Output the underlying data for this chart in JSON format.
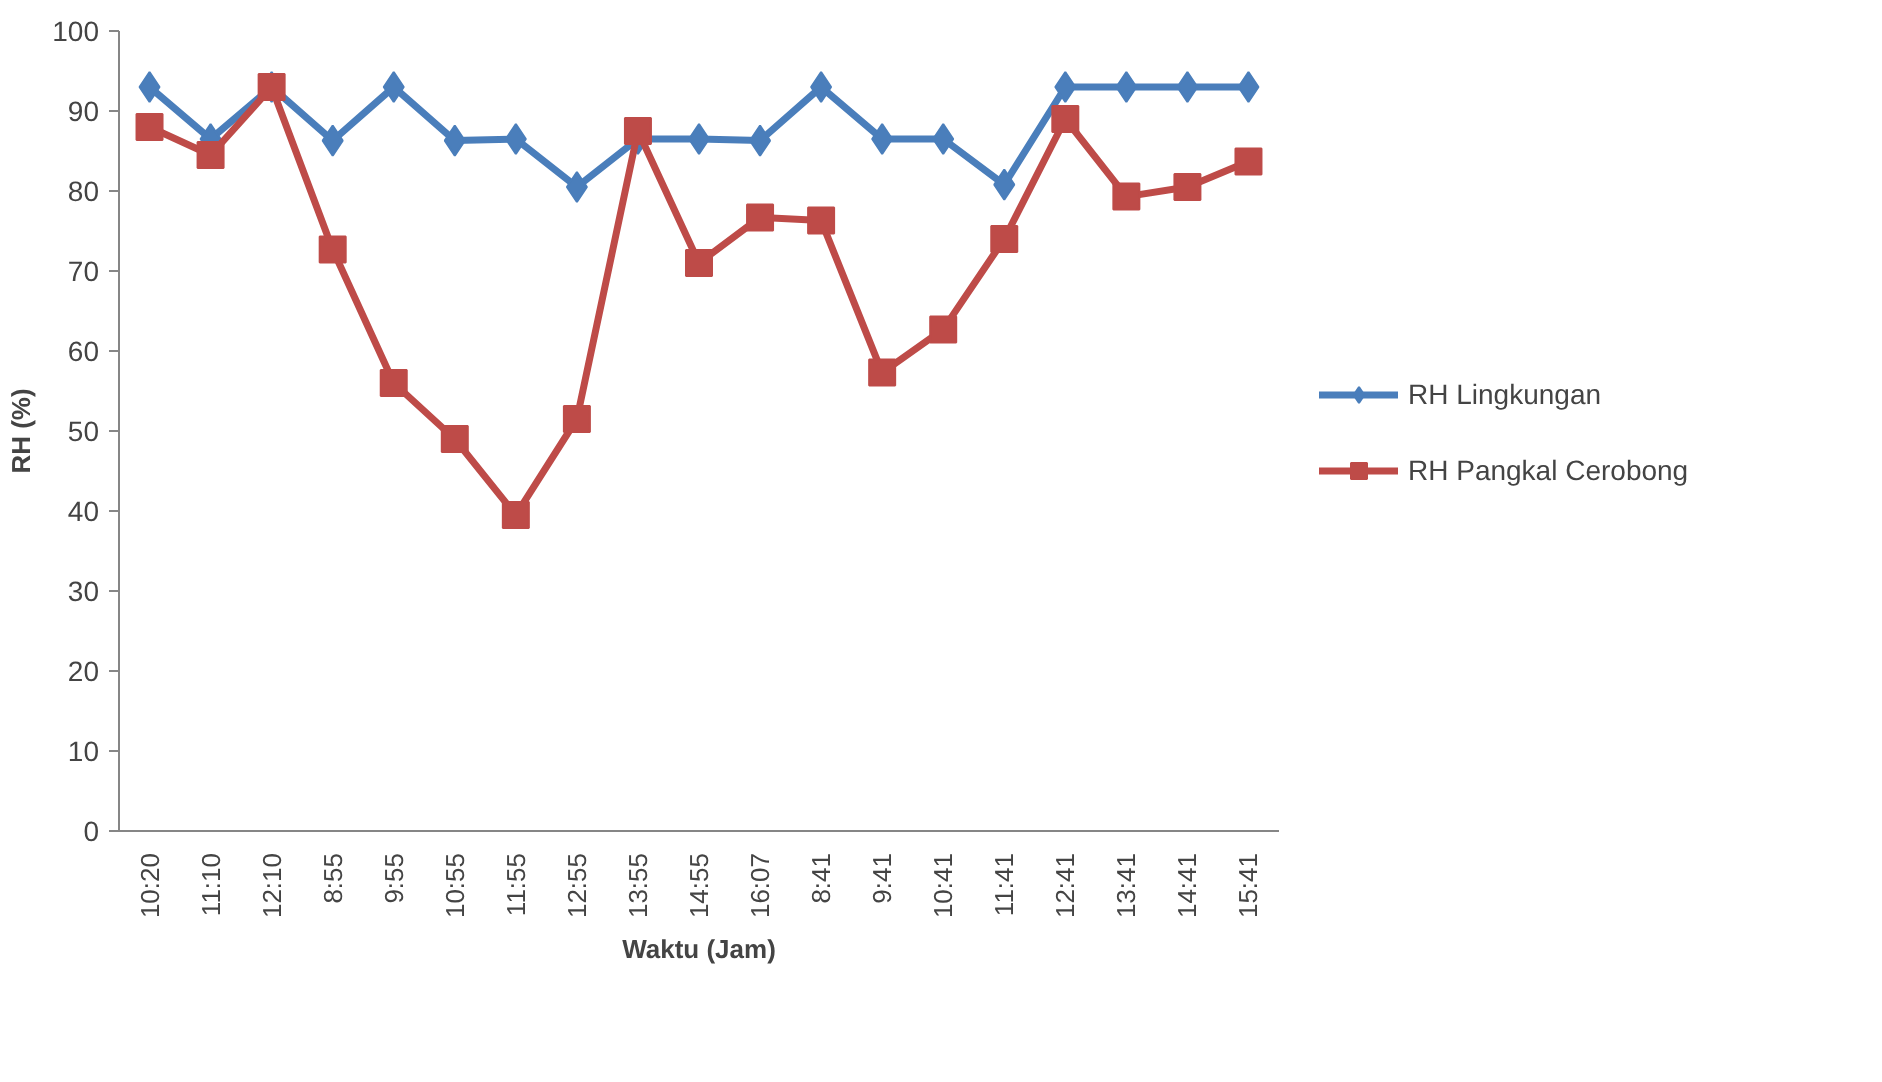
{
  "chart_data": {
    "type": "line",
    "xlabel": "Waktu (Jam)",
    "ylabel": "RH (%)",
    "categories": [
      "10:20",
      "11:10",
      "12:10",
      "8:55",
      "9:55",
      "10:55",
      "11:55",
      "12:55",
      "13:55",
      "14:55",
      "16:07",
      "8:41",
      "9:41",
      "10:41",
      "11:41",
      "12:41",
      "13:41",
      "14:41",
      "15:41"
    ],
    "series": [
      {
        "name": "RH Lingkungan",
        "color": "#4a7ebb",
        "marker": "diamond",
        "values": [
          93,
          86.5,
          93,
          86.3,
          93,
          86.3,
          86.5,
          80.5,
          86.5,
          86.5,
          86.3,
          93,
          86.5,
          86.5,
          80.8,
          93,
          93,
          93,
          93
        ]
      },
      {
        "name": "RH Pangkal Cerobong",
        "color": "#be4b48",
        "marker": "square",
        "values": [
          88,
          84.5,
          93,
          72.7,
          56,
          49,
          39.5,
          51.5,
          87.5,
          71,
          76.7,
          76.3,
          57.3,
          62.7,
          74,
          89,
          79.3,
          80.5,
          83.7
        ]
      }
    ],
    "ylim": [
      0,
      100
    ],
    "yticks": [
      0,
      10,
      20,
      30,
      40,
      50,
      60,
      70,
      80,
      90,
      100
    ],
    "grid": false,
    "legend": "right",
    "line_style": "solid"
  }
}
